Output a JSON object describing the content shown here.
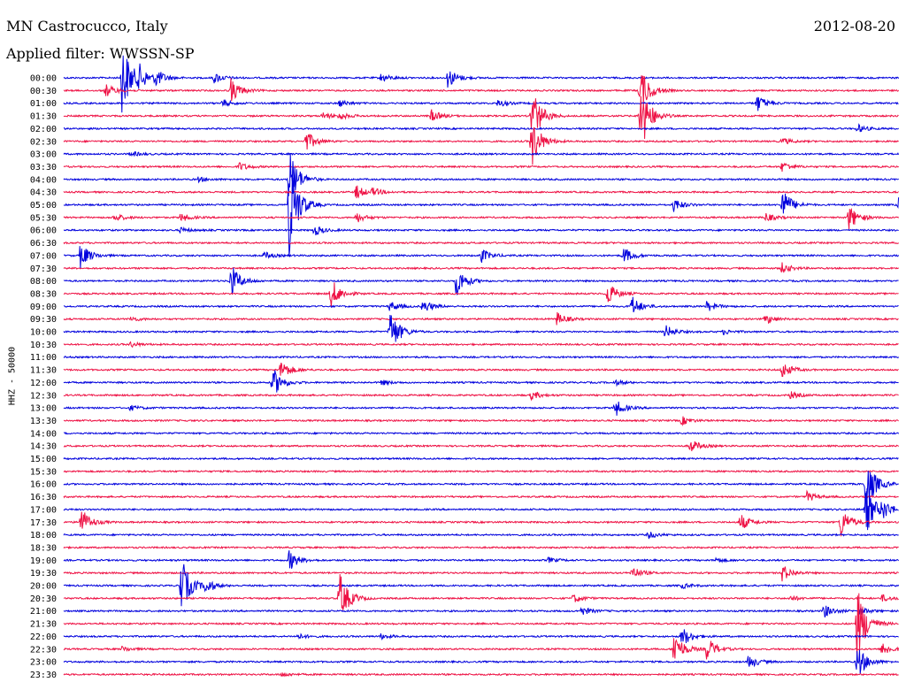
{
  "header": {
    "station": "MN Castrocucco, Italy",
    "date": "2012-08-20",
    "filter": "Applied filter: WWSSN-SP",
    "ylabel": "HHZ - 50000"
  },
  "colors": {
    "even": "#0000dd",
    "odd": "#ee1144"
  },
  "chart_data": {
    "type": "line",
    "title": "MN Castrocucco, Italy",
    "subtitle": "Applied filter: WWSSN-SP",
    "ylabel": "HHZ - 50000",
    "xlabel": "",
    "rows": [
      "00:00",
      "00:30",
      "01:00",
      "01:30",
      "02:00",
      "02:30",
      "03:00",
      "03:30",
      "04:00",
      "04:30",
      "05:00",
      "05:30",
      "06:00",
      "06:30",
      "07:00",
      "07:30",
      "08:00",
      "08:30",
      "09:00",
      "09:30",
      "10:00",
      "10:30",
      "11:00",
      "11:30",
      "12:00",
      "12:30",
      "13:00",
      "13:30",
      "14:00",
      "14:30",
      "15:00",
      "15:30",
      "16:00",
      "16:30",
      "17:00",
      "17:30",
      "18:00",
      "18:30",
      "19:00",
      "19:30",
      "20:00",
      "20:30",
      "21:00",
      "21:30",
      "22:00",
      "22:30",
      "23:00",
      "23:30"
    ],
    "row_colors": [
      "even",
      "odd"
    ],
    "events": [
      {
        "row": 0,
        "x": 0.07,
        "amp": 45
      },
      {
        "row": 0,
        "x": 0.09,
        "amp": 12
      },
      {
        "row": 0,
        "x": 0.11,
        "amp": 10
      },
      {
        "row": 0,
        "x": 0.18,
        "amp": 6
      },
      {
        "row": 0,
        "x": 0.38,
        "amp": 5
      },
      {
        "row": 0,
        "x": 0.46,
        "amp": 12
      },
      {
        "row": 1,
        "x": 0.05,
        "amp": 8
      },
      {
        "row": 1,
        "x": 0.2,
        "amp": 14
      },
      {
        "row": 1,
        "x": 0.69,
        "amp": 30
      },
      {
        "row": 2,
        "x": 0.19,
        "amp": 4
      },
      {
        "row": 2,
        "x": 0.33,
        "amp": 4
      },
      {
        "row": 2,
        "x": 0.52,
        "amp": 4
      },
      {
        "row": 2,
        "x": 0.83,
        "amp": 10
      },
      {
        "row": 3,
        "x": 0.31,
        "amp": 4
      },
      {
        "row": 3,
        "x": 0.33,
        "amp": 4
      },
      {
        "row": 3,
        "x": 0.44,
        "amp": 7
      },
      {
        "row": 3,
        "x": 0.56,
        "amp": 35
      },
      {
        "row": 3,
        "x": 0.69,
        "amp": 45
      },
      {
        "row": 4,
        "x": 0.95,
        "amp": 5
      },
      {
        "row": 5,
        "x": 0.29,
        "amp": 12
      },
      {
        "row": 5,
        "x": 0.56,
        "amp": 30
      },
      {
        "row": 5,
        "x": 0.86,
        "amp": 4
      },
      {
        "row": 6,
        "x": 0.08,
        "amp": 3
      },
      {
        "row": 7,
        "x": 0.21,
        "amp": 5
      },
      {
        "row": 7,
        "x": 0.86,
        "amp": 6
      },
      {
        "row": 8,
        "x": 0.16,
        "amp": 3
      },
      {
        "row": 8,
        "x": 0.27,
        "amp": 35
      },
      {
        "row": 9,
        "x": 0.35,
        "amp": 8
      },
      {
        "row": 9,
        "x": 0.37,
        "amp": 4
      },
      {
        "row": 10,
        "x": 0.27,
        "amp": 60
      },
      {
        "row": 10,
        "x": 0.73,
        "amp": 8
      },
      {
        "row": 10,
        "x": 0.86,
        "amp": 20
      },
      {
        "row": 10,
        "x": 1.0,
        "amp": 12
      },
      {
        "row": 11,
        "x": 0.06,
        "amp": 5
      },
      {
        "row": 11,
        "x": 0.14,
        "amp": 5
      },
      {
        "row": 11,
        "x": 0.35,
        "amp": 6
      },
      {
        "row": 11,
        "x": 0.84,
        "amp": 5
      },
      {
        "row": 11,
        "x": 0.94,
        "amp": 15
      },
      {
        "row": 12,
        "x": 0.3,
        "amp": 6
      },
      {
        "row": 12,
        "x": 0.14,
        "amp": 3
      },
      {
        "row": 14,
        "x": 0.02,
        "amp": 15
      },
      {
        "row": 14,
        "x": 0.24,
        "amp": 4
      },
      {
        "row": 14,
        "x": 0.5,
        "amp": 8
      },
      {
        "row": 14,
        "x": 0.67,
        "amp": 10
      },
      {
        "row": 15,
        "x": 0.86,
        "amp": 6
      },
      {
        "row": 16,
        "x": 0.2,
        "amp": 20
      },
      {
        "row": 16,
        "x": 0.47,
        "amp": 18
      },
      {
        "row": 17,
        "x": 0.32,
        "amp": 18
      },
      {
        "row": 17,
        "x": 0.65,
        "amp": 15
      },
      {
        "row": 18,
        "x": 0.39,
        "amp": 6
      },
      {
        "row": 18,
        "x": 0.43,
        "amp": 8
      },
      {
        "row": 18,
        "x": 0.68,
        "amp": 12
      },
      {
        "row": 18,
        "x": 0.77,
        "amp": 6
      },
      {
        "row": 19,
        "x": 0.08,
        "amp": 3
      },
      {
        "row": 19,
        "x": 0.59,
        "amp": 8
      },
      {
        "row": 19,
        "x": 0.84,
        "amp": 6
      },
      {
        "row": 20,
        "x": 0.39,
        "amp": 28
      },
      {
        "row": 20,
        "x": 0.72,
        "amp": 8
      },
      {
        "row": 20,
        "x": 0.79,
        "amp": 3
      },
      {
        "row": 21,
        "x": 0.08,
        "amp": 3
      },
      {
        "row": 23,
        "x": 0.26,
        "amp": 12
      },
      {
        "row": 23,
        "x": 0.86,
        "amp": 10
      },
      {
        "row": 24,
        "x": 0.25,
        "amp": 18
      },
      {
        "row": 24,
        "x": 0.38,
        "amp": 3
      },
      {
        "row": 24,
        "x": 0.66,
        "amp": 3
      },
      {
        "row": 25,
        "x": 0.56,
        "amp": 5
      },
      {
        "row": 25,
        "x": 0.87,
        "amp": 4
      },
      {
        "row": 26,
        "x": 0.08,
        "amp": 3
      },
      {
        "row": 26,
        "x": 0.66,
        "amp": 10
      },
      {
        "row": 27,
        "x": 0.74,
        "amp": 5
      },
      {
        "row": 29,
        "x": 0.75,
        "amp": 8
      },
      {
        "row": 32,
        "x": 0.96,
        "amp": 35
      },
      {
        "row": 33,
        "x": 0.89,
        "amp": 6
      },
      {
        "row": 34,
        "x": 0.96,
        "amp": 30
      },
      {
        "row": 34,
        "x": 0.98,
        "amp": 10
      },
      {
        "row": 34,
        "x": 1.0,
        "amp": 10
      },
      {
        "row": 35,
        "x": 0.02,
        "amp": 18
      },
      {
        "row": 35,
        "x": 0.81,
        "amp": 10
      },
      {
        "row": 35,
        "x": 0.93,
        "amp": 18
      },
      {
        "row": 36,
        "x": 0.7,
        "amp": 4
      },
      {
        "row": 38,
        "x": 0.27,
        "amp": 12
      },
      {
        "row": 38,
        "x": 0.58,
        "amp": 3
      },
      {
        "row": 38,
        "x": 0.78,
        "amp": 3
      },
      {
        "row": 39,
        "x": 0.68,
        "amp": 8
      },
      {
        "row": 39,
        "x": 0.86,
        "amp": 10
      },
      {
        "row": 40,
        "x": 0.14,
        "amp": 35
      },
      {
        "row": 40,
        "x": 0.17,
        "amp": 8
      },
      {
        "row": 40,
        "x": 0.74,
        "amp": 3
      },
      {
        "row": 41,
        "x": 0.33,
        "amp": 30
      },
      {
        "row": 41,
        "x": 0.61,
        "amp": 5
      },
      {
        "row": 41,
        "x": 0.87,
        "amp": 3
      },
      {
        "row": 41,
        "x": 0.98,
        "amp": 4
      },
      {
        "row": 42,
        "x": 0.62,
        "amp": 5
      },
      {
        "row": 42,
        "x": 0.91,
        "amp": 8
      },
      {
        "row": 42,
        "x": 0.95,
        "amp": 6
      },
      {
        "row": 43,
        "x": 0.95,
        "amp": 45
      },
      {
        "row": 44,
        "x": 0.74,
        "amp": 12
      },
      {
        "row": 44,
        "x": 0.28,
        "amp": 3
      },
      {
        "row": 44,
        "x": 0.38,
        "amp": 3
      },
      {
        "row": 45,
        "x": 0.73,
        "amp": 22
      },
      {
        "row": 45,
        "x": 0.77,
        "amp": 14
      },
      {
        "row": 45,
        "x": 0.98,
        "amp": 8
      },
      {
        "row": 45,
        "x": 0.07,
        "amp": 3
      },
      {
        "row": 46,
        "x": 0.82,
        "amp": 8
      },
      {
        "row": 46,
        "x": 0.95,
        "amp": 20
      },
      {
        "row": 47,
        "x": 0.26,
        "amp": 3
      }
    ]
  }
}
